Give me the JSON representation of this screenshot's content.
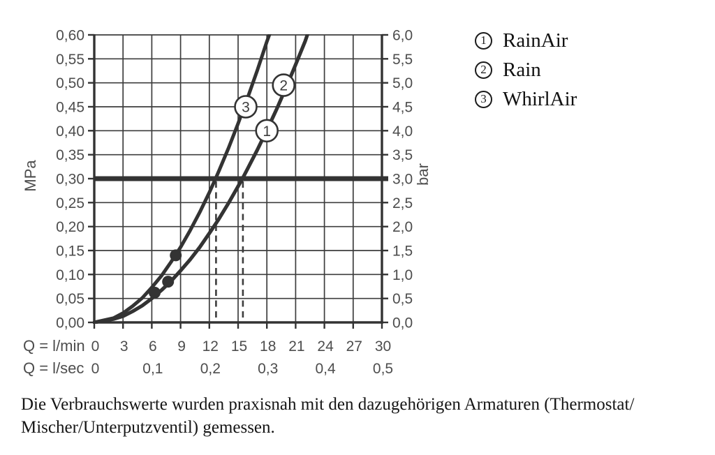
{
  "legend": {
    "items": [
      {
        "number": "1",
        "label": "RainAir"
      },
      {
        "number": "2",
        "label": "Rain"
      },
      {
        "number": "3",
        "label": "WhirlAir"
      }
    ]
  },
  "caption": {
    "line1": "Die Verbrauchswerte wurden praxisnah mit den dazugehörigen Armaturen (Thermostat/",
    "line2": "Mischer/Unterputzventil) gemessen."
  },
  "chart_data": {
    "type": "line",
    "title": "",
    "x_axis": {
      "unit_primary": "Q = l/min",
      "unit_secondary": "Q = l/sec",
      "range_lmin": [
        0,
        30
      ],
      "grid_step_lmin": 3,
      "ticks_lmin": [
        "0",
        "3",
        "6",
        "9",
        "12",
        "15",
        "18",
        "21",
        "24",
        "27",
        "30"
      ],
      "ticks_lsec": [
        {
          "x": 0,
          "label": "0"
        },
        {
          "x": 6,
          "label": "0,1"
        },
        {
          "x": 12,
          "label": "0,2"
        },
        {
          "x": 18,
          "label": "0,3"
        },
        {
          "x": 24,
          "label": "0,4"
        },
        {
          "x": 30,
          "label": "0,5"
        }
      ]
    },
    "y_axis_left": {
      "unit": "MPa",
      "range_mpa": [
        0,
        0.6
      ],
      "grid_step_mpa": 0.05,
      "ticks": [
        {
          "v": 0.0,
          "label": "0,00"
        },
        {
          "v": 0.05,
          "label": "0,05"
        },
        {
          "v": 0.1,
          "label": "0,10"
        },
        {
          "v": 0.15,
          "label": "0,15"
        },
        {
          "v": 0.2,
          "label": "0,20"
        },
        {
          "v": 0.25,
          "label": "0,25"
        },
        {
          "v": 0.3,
          "label": "0,30"
        },
        {
          "v": 0.35,
          "label": "0,35"
        },
        {
          "v": 0.4,
          "label": "0,40"
        },
        {
          "v": 0.45,
          "label": "0,45"
        },
        {
          "v": 0.5,
          "label": "0,50"
        },
        {
          "v": 0.55,
          "label": "0,55"
        },
        {
          "v": 0.6,
          "label": "0,60"
        }
      ]
    },
    "y_axis_right": {
      "unit": "bar",
      "range_bar": [
        0,
        6
      ],
      "ticks": [
        {
          "v": 0.0,
          "label": "0,0"
        },
        {
          "v": 0.05,
          "label": "0,5"
        },
        {
          "v": 0.1,
          "label": "1,0"
        },
        {
          "v": 0.15,
          "label": "1,5"
        },
        {
          "v": 0.2,
          "label": "2,0"
        },
        {
          "v": 0.25,
          "label": "2,5"
        },
        {
          "v": 0.3,
          "label": "3,0"
        },
        {
          "v": 0.35,
          "label": "3,5"
        },
        {
          "v": 0.4,
          "label": "4,0"
        },
        {
          "v": 0.45,
          "label": "4,5"
        },
        {
          "v": 0.5,
          "label": "5,0"
        },
        {
          "v": 0.55,
          "label": "5,5"
        },
        {
          "v": 0.6,
          "label": "6,0"
        }
      ]
    },
    "reference_line": {
      "mpa": 0.3,
      "bar": 3.0
    },
    "dashed_flow_marks_lmin": [
      12.7,
      15.5
    ],
    "measure_dots": [
      {
        "lmin": 6.3,
        "mpa": 0.062
      },
      {
        "lmin": 7.7,
        "mpa": 0.085
      },
      {
        "lmin": 8.5,
        "mpa": 0.14
      }
    ],
    "series": [
      {
        "id": "1",
        "name": "RainAir",
        "marker": {
          "label": "1",
          "lmin": 18.0,
          "mpa": 0.4
        },
        "flow_at_3bar_lmin": 15.5,
        "points": [
          [
            0,
            0
          ],
          [
            2,
            0.007
          ],
          [
            3,
            0.013
          ],
          [
            4,
            0.023
          ],
          [
            5,
            0.035
          ],
          [
            6,
            0.05
          ],
          [
            7,
            0.067
          ],
          [
            8,
            0.086
          ],
          [
            9,
            0.108
          ],
          [
            10,
            0.131
          ],
          [
            11,
            0.157
          ],
          [
            12,
            0.186
          ],
          [
            13,
            0.216
          ],
          [
            14,
            0.249
          ],
          [
            15,
            0.284
          ],
          [
            15.45,
            0.3
          ],
          [
            16,
            0.321
          ],
          [
            17,
            0.36
          ],
          [
            18,
            0.401
          ],
          [
            19,
            0.444
          ],
          [
            20,
            0.49
          ],
          [
            21,
            0.538
          ],
          [
            22,
            0.587
          ],
          [
            22.3,
            0.605
          ]
        ]
      },
      {
        "id": "2",
        "name": "Rain",
        "marker": {
          "label": "2",
          "lmin": 19.75,
          "mpa": 0.495
        },
        "flow_at_3bar_lmin": 15.5,
        "points": [
          [
            0,
            0
          ],
          [
            2,
            0.007
          ],
          [
            3,
            0.013
          ],
          [
            4,
            0.023
          ],
          [
            5,
            0.035
          ],
          [
            6,
            0.05
          ],
          [
            7,
            0.067
          ],
          [
            8,
            0.086
          ],
          [
            9,
            0.108
          ],
          [
            10,
            0.131
          ],
          [
            11,
            0.157
          ],
          [
            12,
            0.186
          ],
          [
            13,
            0.216
          ],
          [
            14,
            0.249
          ],
          [
            15,
            0.284
          ],
          [
            15.45,
            0.3
          ],
          [
            16,
            0.321
          ],
          [
            17,
            0.36
          ],
          [
            18,
            0.401
          ],
          [
            19,
            0.444
          ],
          [
            20,
            0.49
          ],
          [
            21,
            0.538
          ],
          [
            22,
            0.587
          ],
          [
            22.3,
            0.605
          ]
        ]
      },
      {
        "id": "3",
        "name": "WhirlAir",
        "marker": {
          "label": "3",
          "lmin": 15.8,
          "mpa": 0.45
        },
        "flow_at_3bar_lmin": 12.7,
        "points": [
          [
            0,
            0
          ],
          [
            2,
            0.009
          ],
          [
            3,
            0.0195
          ],
          [
            4,
            0.034
          ],
          [
            5,
            0.051
          ],
          [
            6,
            0.073
          ],
          [
            7,
            0.097
          ],
          [
            8,
            0.126
          ],
          [
            9,
            0.157
          ],
          [
            10,
            0.192
          ],
          [
            11,
            0.23
          ],
          [
            12,
            0.271
          ],
          [
            12.65,
            0.3
          ],
          [
            13,
            0.316
          ],
          [
            14,
            0.364
          ],
          [
            15,
            0.415
          ],
          [
            16,
            0.469
          ],
          [
            17,
            0.526
          ],
          [
            18,
            0.586
          ],
          [
            18.4,
            0.608
          ]
        ]
      }
    ],
    "colors": {
      "line": "#333333",
      "grid": "#3d3d3d",
      "label": "#4d4d4d",
      "background": "#ffffff"
    }
  }
}
